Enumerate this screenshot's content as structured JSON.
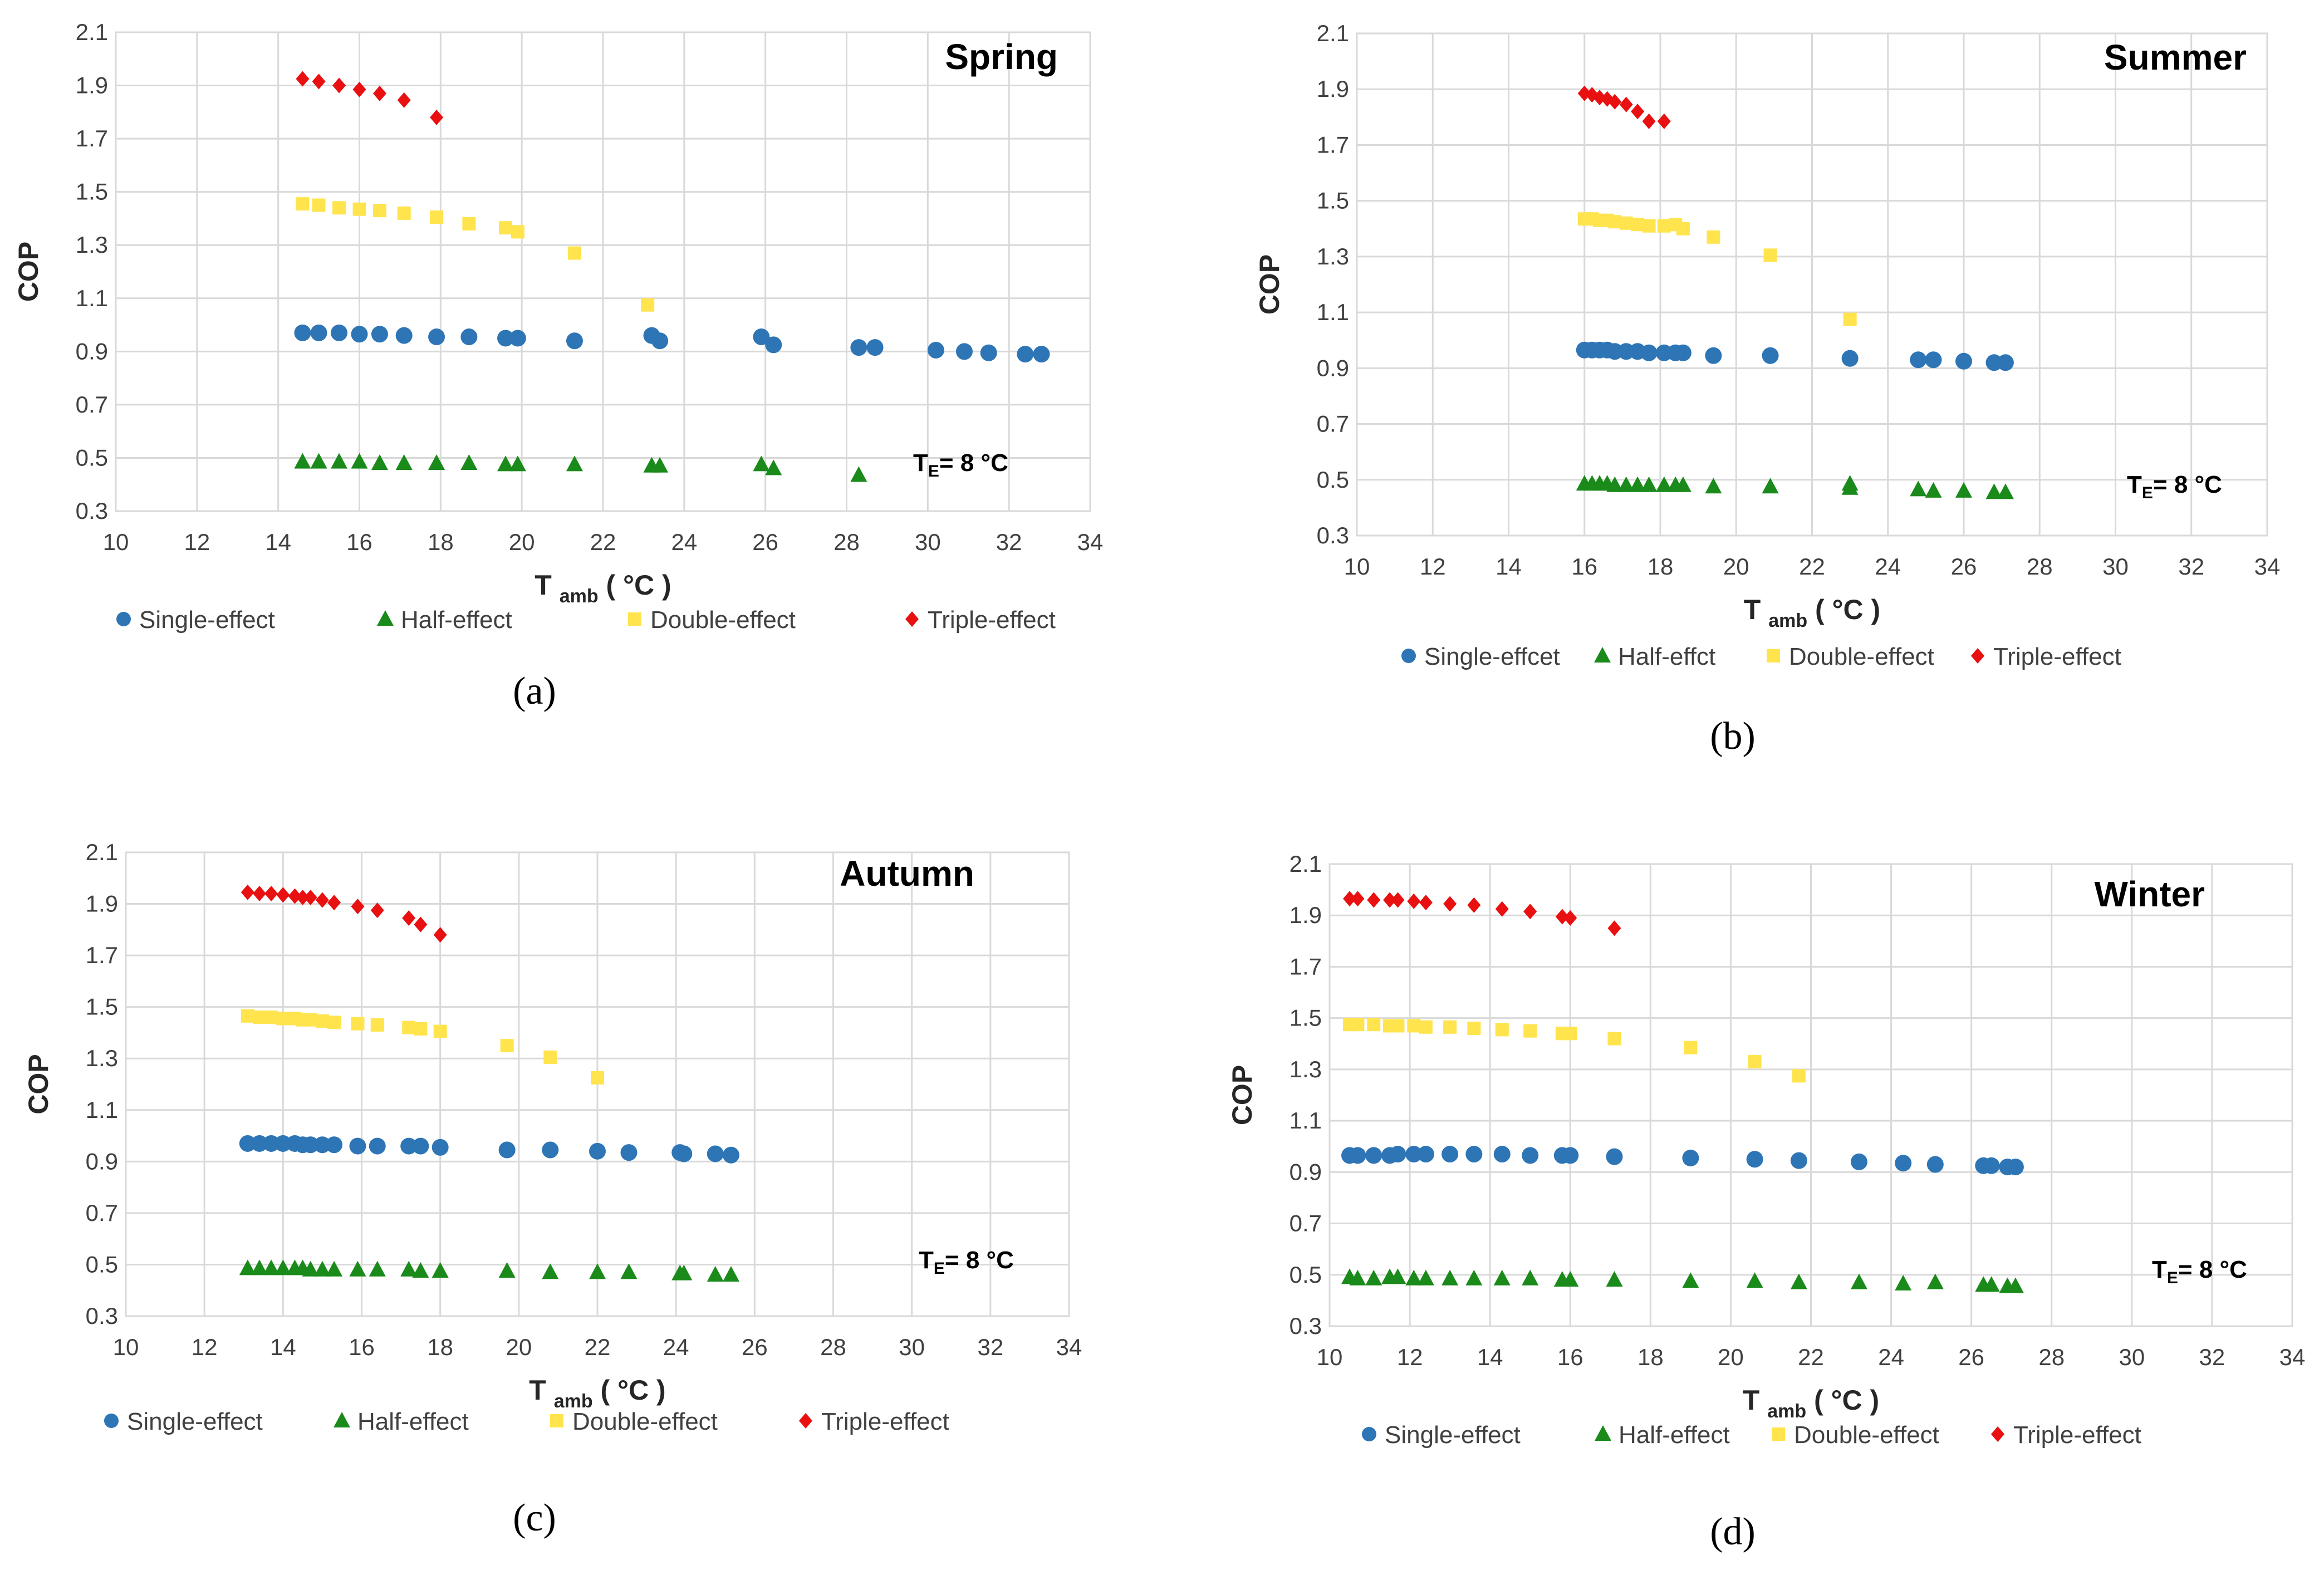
{
  "colors": {
    "single": "#2e75b6",
    "half": "#1a8a1a",
    "double": "#ffe44d",
    "triple": "#e81010",
    "grid": "#d9d9d9",
    "text": "#404040"
  },
  "chart_data": [
    {
      "type": "scatter",
      "title": "Spring",
      "panel_label": "(a)",
      "xlabel": "T",
      "xlabel_sub": "amb",
      "xlabel_unit": " ( °C )",
      "ylabel": "COP",
      "xlim": [
        10,
        34
      ],
      "ylim": [
        0.3,
        2.1
      ],
      "xticks": [
        "10",
        "12",
        "14",
        "16",
        "18",
        "20",
        "22",
        "24",
        "26",
        "28",
        "30",
        "32",
        "34"
      ],
      "yticks": [
        "0.3",
        "0.5",
        "0.7",
        "0.9",
        "1.1",
        "1.3",
        "1.5",
        "1.7",
        "1.9",
        "2.1"
      ],
      "annotation": {
        "main": "T",
        "sub": "E",
        "rest": "= 8 °C"
      },
      "legend_labels": [
        "Single-effect",
        "Half-effect",
        "Double-effect",
        "Triple-effect"
      ],
      "series": [
        {
          "name": "Single-effect",
          "marker": "circle",
          "x": [
            14.6,
            15.0,
            15.5,
            16.0,
            16.5,
            17.1,
            17.9,
            18.7,
            19.6,
            19.9,
            21.3,
            23.2,
            23.4,
            25.9,
            26.2,
            28.3,
            28.7,
            30.2,
            30.9,
            31.5,
            32.4,
            32.8
          ],
          "y": [
            0.97,
            0.97,
            0.97,
            0.965,
            0.965,
            0.96,
            0.955,
            0.955,
            0.95,
            0.95,
            0.94,
            0.96,
            0.94,
            0.955,
            0.925,
            0.915,
            0.915,
            0.905,
            0.9,
            0.895,
            0.89,
            0.89
          ]
        },
        {
          "name": "Half-effect",
          "marker": "triangle",
          "x": [
            14.6,
            15.0,
            15.5,
            16.0,
            16.5,
            17.1,
            17.9,
            18.7,
            19.6,
            19.9,
            21.3,
            23.2,
            23.4,
            25.9,
            26.2,
            28.3
          ],
          "y": [
            0.485,
            0.485,
            0.485,
            0.485,
            0.48,
            0.48,
            0.48,
            0.48,
            0.475,
            0.475,
            0.475,
            0.47,
            0.47,
            0.475,
            0.46,
            0.435
          ]
        },
        {
          "name": "Double-effect",
          "marker": "square",
          "x": [
            14.6,
            15.0,
            15.5,
            16.0,
            16.5,
            17.1,
            17.9,
            18.7,
            19.6,
            19.9,
            21.3,
            23.1
          ],
          "y": [
            1.455,
            1.45,
            1.44,
            1.435,
            1.43,
            1.42,
            1.405,
            1.38,
            1.365,
            1.35,
            1.27,
            1.075
          ]
        },
        {
          "name": "Triple-effect",
          "marker": "diamond",
          "x": [
            14.6,
            15.0,
            15.5,
            16.0,
            16.5,
            17.1,
            17.9
          ],
          "y": [
            1.925,
            1.915,
            1.9,
            1.885,
            1.87,
            1.845,
            1.78
          ]
        }
      ]
    },
    {
      "type": "scatter",
      "title": "Summer",
      "panel_label": "(b)",
      "xlabel": "T",
      "xlabel_sub": "amb",
      "xlabel_unit": " ( °C )",
      "ylabel": "COP",
      "xlim": [
        10,
        34
      ],
      "ylim": [
        0.3,
        2.1
      ],
      "xticks": [
        "10",
        "12",
        "14",
        "16",
        "18",
        "20",
        "22",
        "24",
        "26",
        "28",
        "30",
        "32",
        "34"
      ],
      "yticks": [
        "0.3",
        "0.5",
        "0.7",
        "0.9",
        "1.1",
        "1.3",
        "1.5",
        "1.7",
        "1.9",
        "2.1"
      ],
      "annotation": {
        "main": "T",
        "sub": "E",
        "rest": "= 8 °C"
      },
      "legend_labels": [
        "Single-effcet",
        "Half-effct",
        "Double-effect",
        "Triple-effect"
      ],
      "series": [
        {
          "name": "Single-effcet",
          "marker": "circle",
          "x": [
            16.0,
            16.2,
            16.4,
            16.6,
            16.8,
            17.1,
            17.4,
            17.7,
            18.1,
            18.4,
            18.6,
            19.4,
            20.9,
            23.0,
            24.8,
            25.2,
            26.0,
            26.8,
            27.1
          ],
          "y": [
            0.965,
            0.965,
            0.965,
            0.965,
            0.96,
            0.96,
            0.96,
            0.955,
            0.955,
            0.955,
            0.955,
            0.945,
            0.945,
            0.935,
            0.93,
            0.93,
            0.925,
            0.92,
            0.92
          ]
        },
        {
          "name": "Half-effct",
          "marker": "triangle",
          "x": [
            16.0,
            16.2,
            16.4,
            16.6,
            16.8,
            17.1,
            17.4,
            17.7,
            18.1,
            18.4,
            18.6,
            19.4,
            20.9,
            23.0,
            23.0,
            24.8,
            25.2,
            26.0,
            26.8,
            27.1
          ],
          "y": [
            0.485,
            0.485,
            0.485,
            0.485,
            0.48,
            0.48,
            0.48,
            0.48,
            0.48,
            0.48,
            0.48,
            0.475,
            0.475,
            0.47,
            0.485,
            0.465,
            0.46,
            0.46,
            0.455,
            0.455
          ]
        },
        {
          "name": "Double-effect",
          "marker": "square",
          "x": [
            16.0,
            16.2,
            16.4,
            16.6,
            16.8,
            17.1,
            17.4,
            17.7,
            18.1,
            18.4,
            18.6,
            19.4,
            20.9,
            23.0
          ],
          "y": [
            1.435,
            1.435,
            1.43,
            1.43,
            1.425,
            1.42,
            1.415,
            1.41,
            1.41,
            1.415,
            1.4,
            1.37,
            1.305,
            1.075
          ]
        },
        {
          "name": "Triple-effect",
          "marker": "diamond",
          "x": [
            16.0,
            16.2,
            16.4,
            16.6,
            16.8,
            17.1,
            17.4,
            17.7,
            18.1
          ],
          "y": [
            1.885,
            1.88,
            1.87,
            1.865,
            1.855,
            1.845,
            1.82,
            1.785,
            1.785
          ]
        }
      ]
    },
    {
      "type": "scatter",
      "title": "Autumn",
      "panel_label": "(c)",
      "xlabel": "T",
      "xlabel_sub": "amb",
      "xlabel_unit": " ( °C )",
      "ylabel": "COP",
      "xlim": [
        10,
        34
      ],
      "ylim": [
        0.3,
        2.1
      ],
      "xticks": [
        "10",
        "12",
        "14",
        "16",
        "18",
        "20",
        "22",
        "24",
        "26",
        "28",
        "30",
        "32",
        "34"
      ],
      "yticks": [
        "0.3",
        "0.5",
        "0.7",
        "0.9",
        "1.1",
        "1.3",
        "1.5",
        "1.7",
        "1.9",
        "2.1"
      ],
      "annotation": {
        "main": "T",
        "sub": "E",
        "rest": "= 8 °C"
      },
      "legend_labels": [
        "Single-effect",
        "Half-effect",
        "Double-effect",
        "Triple-effect"
      ],
      "series": [
        {
          "name": "Single-effect",
          "marker": "circle",
          "x": [
            13.1,
            13.4,
            13.7,
            14.0,
            14.3,
            14.5,
            14.7,
            15.0,
            15.3,
            15.9,
            16.4,
            17.2,
            17.5,
            18.0,
            19.7,
            20.8,
            22.0,
            22.8,
            24.1,
            24.2,
            25.0,
            25.4
          ],
          "y": [
            0.97,
            0.97,
            0.97,
            0.97,
            0.97,
            0.965,
            0.965,
            0.965,
            0.965,
            0.96,
            0.96,
            0.96,
            0.96,
            0.955,
            0.945,
            0.945,
            0.94,
            0.935,
            0.935,
            0.93,
            0.93,
            0.925
          ]
        },
        {
          "name": "Half-effect",
          "marker": "triangle",
          "x": [
            13.1,
            13.4,
            13.7,
            14.0,
            14.3,
            14.5,
            14.7,
            15.0,
            15.3,
            15.9,
            16.4,
            17.2,
            17.5,
            18.0,
            19.7,
            20.8,
            22.0,
            22.8,
            24.1,
            24.2,
            25.0,
            25.4
          ],
          "y": [
            0.485,
            0.485,
            0.485,
            0.485,
            0.485,
            0.485,
            0.48,
            0.48,
            0.48,
            0.48,
            0.48,
            0.48,
            0.475,
            0.475,
            0.475,
            0.47,
            0.47,
            0.47,
            0.465,
            0.465,
            0.46,
            0.46
          ]
        },
        {
          "name": "Double-effect",
          "marker": "square",
          "x": [
            13.1,
            13.4,
            13.7,
            14.0,
            14.3,
            14.5,
            14.7,
            15.0,
            15.3,
            15.9,
            16.4,
            17.2,
            17.5,
            18.0,
            19.7,
            20.8,
            22.0
          ],
          "y": [
            1.465,
            1.46,
            1.46,
            1.455,
            1.455,
            1.45,
            1.45,
            1.445,
            1.44,
            1.435,
            1.43,
            1.42,
            1.415,
            1.405,
            1.35,
            1.305,
            1.225
          ]
        },
        {
          "name": "Triple-effect",
          "marker": "diamond",
          "x": [
            13.1,
            13.4,
            13.7,
            14.0,
            14.3,
            14.5,
            14.7,
            15.0,
            15.3,
            15.9,
            16.4,
            17.2,
            17.5,
            18.0
          ],
          "y": [
            1.945,
            1.94,
            1.94,
            1.935,
            1.93,
            1.925,
            1.925,
            1.915,
            1.905,
            1.89,
            1.875,
            1.845,
            1.82,
            1.78
          ]
        }
      ]
    },
    {
      "type": "scatter",
      "title": "Winter",
      "panel_label": "(d)",
      "xlabel": "T",
      "xlabel_sub": "amb",
      "xlabel_unit": " ( °C )",
      "ylabel": "COP",
      "xlim": [
        10,
        34
      ],
      "ylim": [
        0.3,
        2.1
      ],
      "xticks": [
        "10",
        "12",
        "14",
        "16",
        "18",
        "20",
        "22",
        "24",
        "26",
        "28",
        "30",
        "32",
        "34"
      ],
      "yticks": [
        "0.3",
        "0.5",
        "0.7",
        "0.9",
        "1.1",
        "1.3",
        "1.5",
        "1.7",
        "1.9",
        "2.1"
      ],
      "annotation": {
        "main": "T",
        "sub": "E",
        "rest": "= 8 °C"
      },
      "legend_labels": [
        "Single-effect",
        "Half-effect",
        "Double-effect",
        "Triple-effect"
      ],
      "series": [
        {
          "name": "Single-effect",
          "marker": "circle",
          "x": [
            10.5,
            10.7,
            11.1,
            11.5,
            11.7,
            12.1,
            12.4,
            13.0,
            13.6,
            14.3,
            15.0,
            15.8,
            16.0,
            17.1,
            19.0,
            20.6,
            21.7,
            23.2,
            24.3,
            25.1,
            26.3,
            26.5,
            26.9,
            27.1
          ],
          "y": [
            0.965,
            0.965,
            0.965,
            0.965,
            0.97,
            0.97,
            0.97,
            0.97,
            0.97,
            0.97,
            0.965,
            0.965,
            0.965,
            0.96,
            0.955,
            0.95,
            0.945,
            0.94,
            0.935,
            0.93,
            0.925,
            0.925,
            0.92,
            0.92
          ]
        },
        {
          "name": "Half-effect",
          "marker": "triangle",
          "x": [
            10.5,
            10.7,
            11.1,
            11.5,
            11.7,
            12.1,
            12.4,
            13.0,
            13.6,
            14.3,
            15.0,
            15.8,
            16.0,
            17.1,
            19.0,
            20.6,
            21.7,
            23.2,
            24.3,
            25.1,
            26.3,
            26.5,
            26.9,
            27.1
          ],
          "y": [
            0.49,
            0.485,
            0.485,
            0.49,
            0.49,
            0.485,
            0.485,
            0.485,
            0.485,
            0.485,
            0.485,
            0.48,
            0.48,
            0.48,
            0.475,
            0.475,
            0.47,
            0.47,
            0.465,
            0.47,
            0.46,
            0.46,
            0.455,
            0.455
          ]
        },
        {
          "name": "Double-effect",
          "marker": "square",
          "x": [
            10.5,
            10.7,
            11.1,
            11.5,
            11.7,
            12.1,
            12.4,
            13.0,
            13.6,
            14.3,
            15.0,
            15.8,
            16.0,
            17.1,
            19.0,
            20.6,
            21.7
          ],
          "y": [
            1.475,
            1.475,
            1.475,
            1.47,
            1.47,
            1.47,
            1.465,
            1.465,
            1.46,
            1.455,
            1.45,
            1.44,
            1.44,
            1.42,
            1.385,
            1.33,
            1.275
          ]
        },
        {
          "name": "Triple-effect",
          "marker": "diamond",
          "x": [
            10.5,
            10.7,
            11.1,
            11.5,
            11.7,
            12.1,
            12.4,
            13.0,
            13.6,
            14.3,
            15.0,
            15.8,
            16.0,
            17.1
          ],
          "y": [
            1.965,
            1.965,
            1.96,
            1.96,
            1.96,
            1.955,
            1.95,
            1.945,
            1.94,
            1.925,
            1.915,
            1.895,
            1.89,
            1.85
          ]
        }
      ]
    }
  ]
}
